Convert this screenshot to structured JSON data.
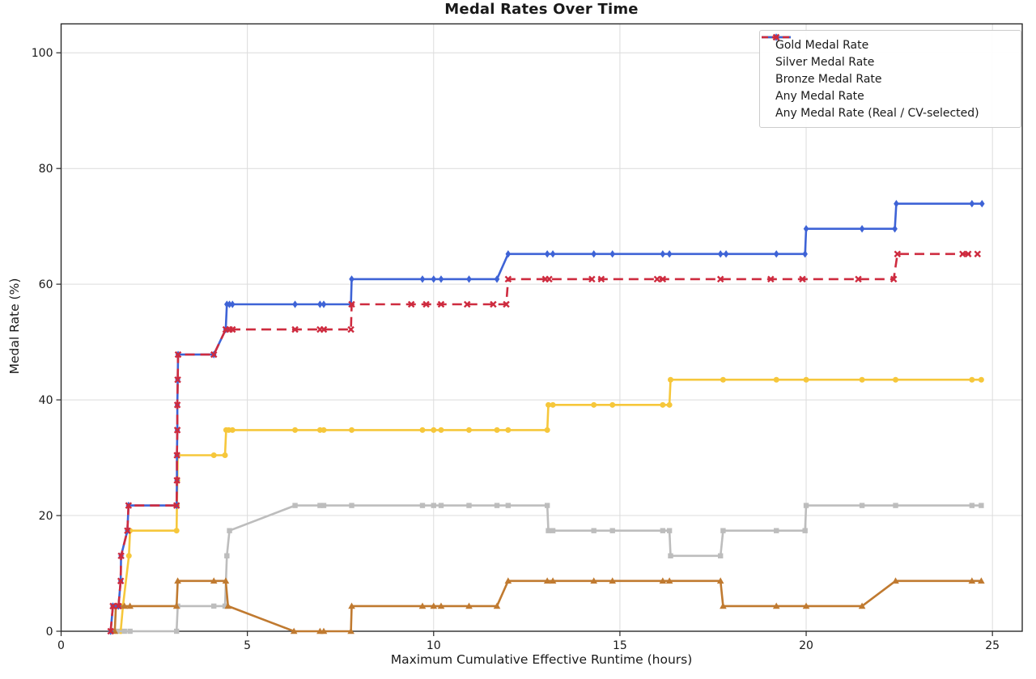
{
  "chart_data": {
    "type": "line",
    "title": "Medal Rates Over Time",
    "xlabel": "Maximum Cumulative Effective Runtime (hours)",
    "ylabel": "Medal Rate (%)",
    "xlim": [
      0,
      25.8
    ],
    "ylim": [
      0,
      105
    ],
    "xticks": [
      0,
      5,
      10,
      15,
      20,
      25
    ],
    "yticks": [
      0,
      20,
      40,
      60,
      80,
      100
    ],
    "grid": true,
    "grid_color": "#dcdcdc",
    "spine_color": "#2a2a2a",
    "legend_position": "upper right",
    "series": [
      {
        "name": "Gold Medal Rate",
        "color": "#F6C73B",
        "marker": "circle",
        "line": "solid",
        "points": [
          [
            1.6,
            0
          ],
          [
            1.66,
            4.35
          ],
          [
            1.82,
            13.04
          ],
          [
            1.85,
            17.39
          ],
          [
            3.1,
            17.39
          ],
          [
            3.11,
            21.74
          ],
          [
            3.12,
            26.09
          ],
          [
            3.13,
            30.43
          ],
          [
            4.1,
            30.43
          ],
          [
            4.4,
            30.43
          ],
          [
            4.43,
            34.78
          ],
          [
            4.5,
            34.78
          ],
          [
            4.6,
            34.78
          ],
          [
            6.28,
            34.78
          ],
          [
            6.95,
            34.78
          ],
          [
            7.05,
            34.78
          ],
          [
            7.8,
            34.78
          ],
          [
            9.7,
            34.78
          ],
          [
            10.0,
            34.78
          ],
          [
            10.2,
            34.78
          ],
          [
            10.95,
            34.78
          ],
          [
            11.7,
            34.78
          ],
          [
            12.0,
            34.78
          ],
          [
            13.05,
            34.78
          ],
          [
            13.08,
            39.13
          ],
          [
            13.2,
            39.13
          ],
          [
            14.3,
            39.13
          ],
          [
            14.8,
            39.13
          ],
          [
            16.15,
            39.13
          ],
          [
            16.33,
            39.13
          ],
          [
            16.36,
            43.48
          ],
          [
            17.77,
            43.48
          ],
          [
            19.2,
            43.48
          ],
          [
            20.0,
            43.48
          ],
          [
            21.5,
            43.48
          ],
          [
            22.4,
            43.48
          ],
          [
            24.45,
            43.48
          ],
          [
            24.7,
            43.48
          ]
        ]
      },
      {
        "name": "Silver Medal Rate",
        "color": "#BDBDBD",
        "marker": "square",
        "line": "solid",
        "points": [
          [
            1.5,
            0
          ],
          [
            1.7,
            0
          ],
          [
            1.85,
            0
          ],
          [
            3.1,
            0
          ],
          [
            3.13,
            4.35
          ],
          [
            4.1,
            4.35
          ],
          [
            4.4,
            4.35
          ],
          [
            4.45,
            13.04
          ],
          [
            4.52,
            17.39
          ],
          [
            6.28,
            21.74
          ],
          [
            6.95,
            21.74
          ],
          [
            7.05,
            21.74
          ],
          [
            7.8,
            21.74
          ],
          [
            9.7,
            21.74
          ],
          [
            10.0,
            21.74
          ],
          [
            10.2,
            21.74
          ],
          [
            10.95,
            21.74
          ],
          [
            11.7,
            21.74
          ],
          [
            12.0,
            21.74
          ],
          [
            13.05,
            21.74
          ],
          [
            13.08,
            17.39
          ],
          [
            13.2,
            17.39
          ],
          [
            14.3,
            17.39
          ],
          [
            14.8,
            17.39
          ],
          [
            16.15,
            17.39
          ],
          [
            16.33,
            17.39
          ],
          [
            16.36,
            13.04
          ],
          [
            17.7,
            13.04
          ],
          [
            17.77,
            17.39
          ],
          [
            19.2,
            17.39
          ],
          [
            19.97,
            17.39
          ],
          [
            20.0,
            21.74
          ],
          [
            21.5,
            21.74
          ],
          [
            22.4,
            21.74
          ],
          [
            24.45,
            21.74
          ],
          [
            24.7,
            21.74
          ]
        ]
      },
      {
        "name": "Bronze Medal Rate",
        "color": "#C07A30",
        "marker": "triangle",
        "line": "solid",
        "points": [
          [
            1.44,
            0
          ],
          [
            1.47,
            4.35
          ],
          [
            1.7,
            4.35
          ],
          [
            1.85,
            4.35
          ],
          [
            3.1,
            4.35
          ],
          [
            3.13,
            8.7
          ],
          [
            4.1,
            8.7
          ],
          [
            4.42,
            8.7
          ],
          [
            4.48,
            4.35
          ],
          [
            6.25,
            0
          ],
          [
            6.95,
            0
          ],
          [
            7.05,
            0
          ],
          [
            7.78,
            0
          ],
          [
            7.8,
            4.35
          ],
          [
            9.7,
            4.35
          ],
          [
            10.0,
            4.35
          ],
          [
            10.2,
            4.35
          ],
          [
            10.95,
            4.35
          ],
          [
            11.7,
            4.35
          ],
          [
            12.0,
            8.7
          ],
          [
            13.05,
            8.7
          ],
          [
            13.2,
            8.7
          ],
          [
            14.3,
            8.7
          ],
          [
            14.8,
            8.7
          ],
          [
            16.15,
            8.7
          ],
          [
            16.33,
            8.7
          ],
          [
            17.7,
            8.7
          ],
          [
            17.77,
            4.35
          ],
          [
            19.2,
            4.35
          ],
          [
            20.0,
            4.35
          ],
          [
            21.5,
            4.35
          ],
          [
            22.4,
            8.7
          ],
          [
            24.45,
            8.7
          ],
          [
            24.7,
            8.7
          ]
        ]
      },
      {
        "name": "Any Medal Rate",
        "color": "#3E63D6",
        "marker": "diamond",
        "line": "solid",
        "points": [
          [
            1.33,
            0
          ],
          [
            1.39,
            4.35
          ],
          [
            1.54,
            4.35
          ],
          [
            1.6,
            8.7
          ],
          [
            1.61,
            13.04
          ],
          [
            1.78,
            17.39
          ],
          [
            1.81,
            21.74
          ],
          [
            3.1,
            21.74
          ],
          [
            3.11,
            26.09
          ],
          [
            3.11,
            30.43
          ],
          [
            3.12,
            34.78
          ],
          [
            3.12,
            39.13
          ],
          [
            3.13,
            43.48
          ],
          [
            3.14,
            47.83
          ],
          [
            4.1,
            47.83
          ],
          [
            4.42,
            52.17
          ],
          [
            4.45,
            56.52
          ],
          [
            4.52,
            56.52
          ],
          [
            4.6,
            56.52
          ],
          [
            6.28,
            56.52
          ],
          [
            6.95,
            56.52
          ],
          [
            7.05,
            56.52
          ],
          [
            7.78,
            56.52
          ],
          [
            7.8,
            60.87
          ],
          [
            9.7,
            60.87
          ],
          [
            10.0,
            60.87
          ],
          [
            10.2,
            60.87
          ],
          [
            10.95,
            60.87
          ],
          [
            11.7,
            60.87
          ],
          [
            12.0,
            65.22
          ],
          [
            13.05,
            65.22
          ],
          [
            13.2,
            65.22
          ],
          [
            14.3,
            65.22
          ],
          [
            14.8,
            65.22
          ],
          [
            16.15,
            65.22
          ],
          [
            16.33,
            65.22
          ],
          [
            17.7,
            65.22
          ],
          [
            17.85,
            65.22
          ],
          [
            19.2,
            65.22
          ],
          [
            19.97,
            65.22
          ],
          [
            20.0,
            69.57
          ],
          [
            21.5,
            69.57
          ],
          [
            22.38,
            69.57
          ],
          [
            22.42,
            73.91
          ],
          [
            24.45,
            73.91
          ],
          [
            24.72,
            73.91
          ]
        ]
      },
      {
        "name": "Any Medal Rate (Real / CV-selected)",
        "color": "#CE2B3F",
        "marker": "x",
        "line": "dashed",
        "points": [
          [
            1.33,
            0
          ],
          [
            1.39,
            4.35
          ],
          [
            1.54,
            4.35
          ],
          [
            1.6,
            8.7
          ],
          [
            1.61,
            13.04
          ],
          [
            1.78,
            17.39
          ],
          [
            1.81,
            21.74
          ],
          [
            3.1,
            21.74
          ],
          [
            3.11,
            26.09
          ],
          [
            3.11,
            30.43
          ],
          [
            3.12,
            34.78
          ],
          [
            3.12,
            39.13
          ],
          [
            3.13,
            43.48
          ],
          [
            3.14,
            47.83
          ],
          [
            4.1,
            47.83
          ],
          [
            4.42,
            52.17
          ],
          [
            4.52,
            52.17
          ],
          [
            4.6,
            52.17
          ],
          [
            6.28,
            52.17
          ],
          [
            6.95,
            52.17
          ],
          [
            7.05,
            52.17
          ],
          [
            7.78,
            52.17
          ],
          [
            7.8,
            56.52
          ],
          [
            9.4,
            56.52
          ],
          [
            9.8,
            56.52
          ],
          [
            10.2,
            56.52
          ],
          [
            10.9,
            56.52
          ],
          [
            11.6,
            56.52
          ],
          [
            11.95,
            56.52
          ],
          [
            12.0,
            60.87
          ],
          [
            13.0,
            60.87
          ],
          [
            13.1,
            60.87
          ],
          [
            14.25,
            60.87
          ],
          [
            14.5,
            60.87
          ],
          [
            16.0,
            60.87
          ],
          [
            16.15,
            60.87
          ],
          [
            17.7,
            60.87
          ],
          [
            19.05,
            60.87
          ],
          [
            19.9,
            60.87
          ],
          [
            21.4,
            60.87
          ],
          [
            22.35,
            60.87
          ],
          [
            22.45,
            65.22
          ],
          [
            24.2,
            65.22
          ],
          [
            24.35,
            65.22
          ],
          [
            24.6,
            65.22
          ]
        ]
      }
    ]
  }
}
